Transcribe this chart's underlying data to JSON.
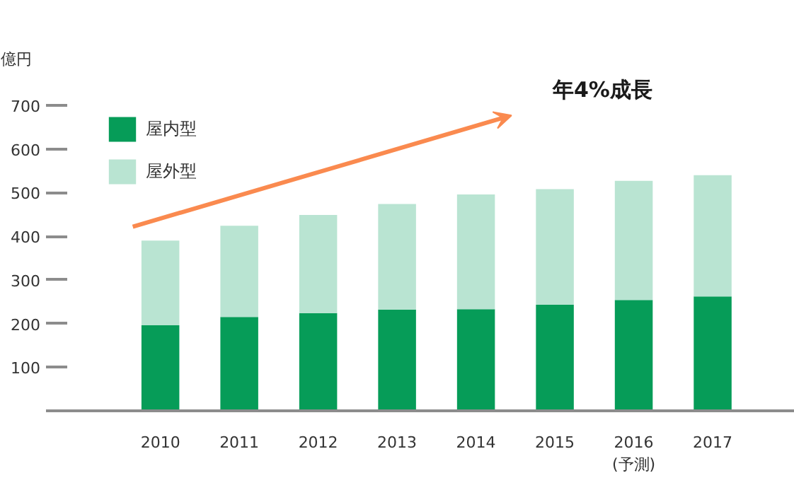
{
  "chart_data": {
    "type": "bar",
    "stacked": true,
    "ylabel": "億円",
    "categories": [
      "2010",
      "2011",
      "2012",
      "2013",
      "2014",
      "2015",
      "2016\n(予測)",
      "2017"
    ],
    "series": [
      {
        "name": "屋内型",
        "color": "#069c58",
        "values": [
          196,
          215,
          224,
          232,
          233,
          243,
          254,
          262
        ]
      },
      {
        "name": "屋外型",
        "color": "#b9e4d2",
        "values": [
          194,
          209,
          225,
          242,
          263,
          265,
          273,
          278
        ]
      }
    ],
    "ylim": [
      0,
      700
    ],
    "yticks": [
      100,
      200,
      300,
      400,
      500,
      600,
      700
    ],
    "annotations": [
      "年4%成長"
    ],
    "grid": false,
    "legend": "top left"
  }
}
